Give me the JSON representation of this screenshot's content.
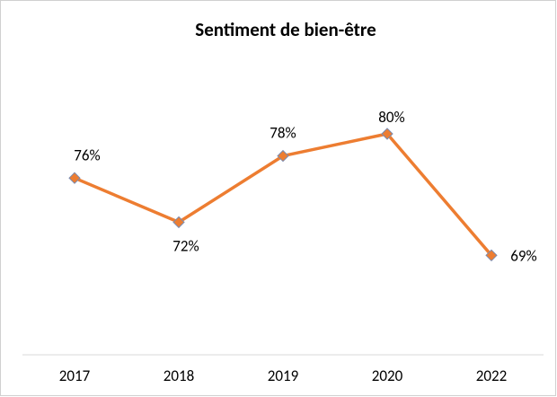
{
  "chart_data": {
    "type": "line",
    "title": "Sentiment de bien-être",
    "categories": [
      "2017",
      "2018",
      "2019",
      "2020",
      "2022"
    ],
    "values": [
      76,
      72,
      78,
      80,
      69
    ],
    "value_labels": [
      "76%",
      "72%",
      "78%",
      "80%",
      "69%"
    ],
    "color": "#ed7d31",
    "marker_color": "#ed7d31",
    "marker_edge_color": "#7a8bb0",
    "ylim": [
      60,
      90
    ]
  }
}
